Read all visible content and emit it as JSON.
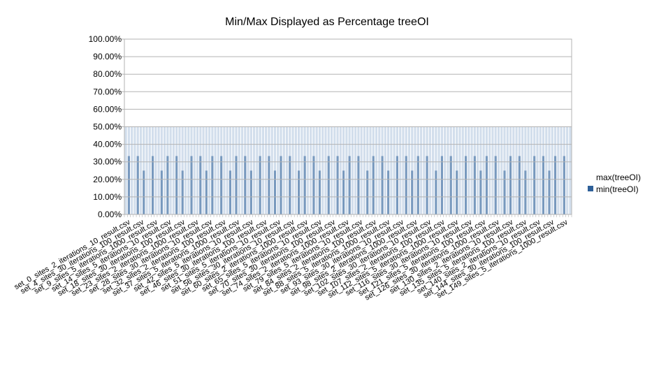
{
  "chart_data": {
    "type": "bar",
    "title": "Min/Max Displayed as Percentage treeOI",
    "ylim": [
      0,
      100
    ],
    "y_ticks": [
      "0.00%",
      "10.00%",
      "20.00%",
      "30.00%",
      "40.00%",
      "50.00%",
      "60.00%",
      "70.00%",
      "80.00%",
      "90.00%",
      "100.00%"
    ],
    "grid": true,
    "legend_position": "right",
    "colors": {
      "max": "#d2deec",
      "min": "#2e6099",
      "grid": "#b3b3b3",
      "axis": "#b3b3b3"
    },
    "x_tick_labels": [
      "set_0_sites_2_iterations_10_result.csv",
      "set_4_sites_30_iterations_100_result.csv",
      "set_9_sites_5_iterations_1000_result.csv",
      "set_14_sites_5_iterations_10_result.csv",
      "set_18_sites_30_iterations_100_result.csv",
      "set_23_sites_2_iterations_1000_result.csv",
      "set_28_sites_30_iterations_10_result.csv",
      "set_32_sites_2_iterations_100_result.csv",
      "set_37_sites_5_iterations_1000_result.csv",
      "set_42_sites_5_iterations_10_result.csv",
      "set_46_sites_30_iterations_100_result.csv",
      "set_51_sites_5_iterations_10_result.csv",
      "set_56_sites_30_iterations_10_result.csv",
      "set_60_sites_2_iterations_1000_result.csv",
      "set_65_sites_5_iterations_10_result.csv",
      "set_70_sites_30_iterations_100_result.csv",
      "set_74_sites_2_iterations_1000_result.csv",
      "set_79_sites_5_iterations_10_result.csv",
      "set_84_sites_2_iterations_100_result.csv",
      "set_88_sites_5_iterations_1000_result.csv",
      "set_93_sites_30_iterations_10_result.csv",
      "set_98_sites_2_iterations_1000_result.csv",
      "set_102_sites_30_iterations_10_result.csv",
      "set_107_sites_2_iterations_100_result.csv",
      "set_112_sites_5_iterations_1000_result.csv",
      "set_116_sites_30_iterations_10_result.csv",
      "set_121_sites_5_iterations_100_result.csv",
      "set_126_sites_30_iterations_1000_result.csv",
      "set_130_sites_2_iterations_10_result.csv",
      "set_135_sites_5_iterations_100_result.csv",
      "set_140_sites_2_iterations_10_result.csv",
      "set_144_sites_30_iterations_100_result.csv",
      "set_149_sites_5_iterations_1000_result.csv"
    ],
    "series": [
      {
        "name": "max(treeOI)",
        "value": 50,
        "count": 150
      },
      {
        "name": "min(treeOI)",
        "count": 150,
        "values": [
          0,
          33.3,
          0,
          0,
          33.3,
          0,
          25,
          0,
          0,
          33.3,
          0,
          0,
          25,
          0,
          33.3,
          0,
          0,
          33.3,
          0,
          25,
          0,
          0,
          33.3,
          0,
          0,
          33.3,
          0,
          25,
          0,
          33.3,
          0,
          0,
          33.3,
          0,
          0,
          25,
          0,
          33.3,
          0,
          0,
          33.3,
          0,
          25,
          0,
          0,
          33.3,
          0,
          0,
          33.3,
          0,
          25,
          0,
          33.3,
          0,
          0,
          33.3,
          0,
          0,
          25,
          0,
          33.3,
          0,
          0,
          33.3,
          0,
          25,
          0,
          0,
          33.3,
          0,
          0,
          33.3,
          0,
          25,
          0,
          33.3,
          0,
          0,
          33.3,
          0,
          0,
          25,
          0,
          33.3,
          0,
          0,
          33.3,
          0,
          25,
          0,
          0,
          33.3,
          0,
          0,
          33.3,
          0,
          25,
          0,
          33.3,
          0,
          0,
          33.3,
          0,
          0,
          25,
          0,
          33.3,
          0,
          0,
          33.3,
          0,
          25,
          0,
          0,
          33.3,
          0,
          0,
          33.3,
          0,
          25,
          0,
          33.3,
          0,
          0,
          33.3,
          0,
          0,
          25,
          0,
          33.3,
          0,
          0,
          33.3,
          0,
          25,
          0,
          0,
          33.3,
          0,
          0,
          33.3,
          0,
          25,
          0,
          33.3,
          0,
          0,
          33.3,
          0,
          0,
          25,
          0,
          33.3,
          0,
          0,
          33.3,
          0,
          25,
          0,
          0,
          33.3,
          0,
          0
        ]
      }
    ]
  }
}
